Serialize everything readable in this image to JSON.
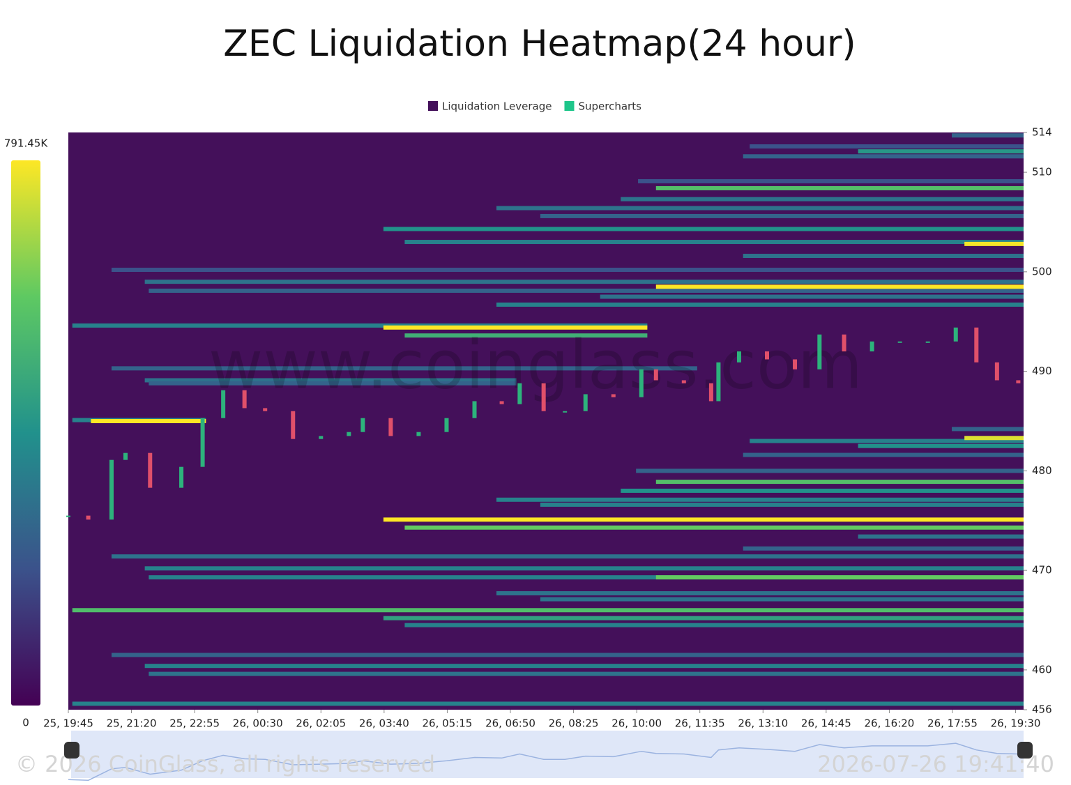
{
  "chart_data": {
    "type": "heatmap",
    "title": "ZEC Liquidation Heatmap(24 hour)",
    "series": [
      {
        "name": "Liquidation Leverage",
        "color": "#44105a"
      },
      {
        "name": "Supercharts",
        "color": "#1ec68a"
      }
    ],
    "ylim": [
      456,
      514
    ],
    "yticks": [
      456,
      460,
      470,
      480,
      490,
      500,
      510,
      514
    ],
    "xlim": [
      0,
      1437
    ],
    "xticks": [
      {
        "value": 0,
        "label": "25, 19:45"
      },
      {
        "value": 95,
        "label": "25, 21:20"
      },
      {
        "value": 190,
        "label": "25, 22:55"
      },
      {
        "value": 285,
        "label": "26, 00:30"
      },
      {
        "value": 380,
        "label": "26, 02:05"
      },
      {
        "value": 475,
        "label": "26, 03:40"
      },
      {
        "value": 570,
        "label": "26, 05:15"
      },
      {
        "value": 665,
        "label": "26, 06:50"
      },
      {
        "value": 760,
        "label": "26, 08:25"
      },
      {
        "value": 855,
        "label": "26, 10:00"
      },
      {
        "value": 950,
        "label": "26, 11:35"
      },
      {
        "value": 1045,
        "label": "26, 13:10"
      },
      {
        "value": 1140,
        "label": "26, 14:45"
      },
      {
        "value": 1235,
        "label": "26, 16:20"
      },
      {
        "value": 1330,
        "label": "26, 17:55"
      },
      {
        "value": 1425,
        "label": "26, 19:30"
      }
    ],
    "clim": [
      0,
      791450
    ],
    "cticks": [
      {
        "value": 791450,
        "label": "791.45K"
      },
      0
    ],
    "bands": [
      {
        "price": 513.7,
        "start": 1329,
        "end": 1437,
        "value": 250000
      },
      {
        "price": 512.6,
        "start": 1025,
        "end": 1437,
        "value": 200000
      },
      {
        "price": 512.1,
        "start": 1188,
        "end": 1437,
        "value": 420000
      },
      {
        "price": 511.6,
        "start": 1015,
        "end": 1437,
        "value": 250000
      },
      {
        "price": 509.1,
        "start": 857,
        "end": 1437,
        "value": 200000
      },
      {
        "price": 508.4,
        "start": 884,
        "end": 1437,
        "value": 560000
      },
      {
        "price": 507.3,
        "start": 831,
        "end": 1437,
        "value": 300000
      },
      {
        "price": 506.4,
        "start": 644,
        "end": 1437,
        "value": 300000
      },
      {
        "price": 505.6,
        "start": 710,
        "end": 1437,
        "value": 250000
      },
      {
        "price": 504.3,
        "start": 474,
        "end": 1437,
        "value": 400000
      },
      {
        "price": 503.0,
        "start": 506,
        "end": 1437,
        "value": 350000
      },
      {
        "price": 502.8,
        "start": 1348,
        "end": 1437,
        "value": 780000
      },
      {
        "price": 501.6,
        "start": 1015,
        "end": 1437,
        "value": 300000
      },
      {
        "price": 500.2,
        "start": 65,
        "end": 1437,
        "value": 200000
      },
      {
        "price": 499.0,
        "start": 115,
        "end": 1437,
        "value": 300000
      },
      {
        "price": 498.1,
        "start": 121,
        "end": 1437,
        "value": 250000
      },
      {
        "price": 498.5,
        "start": 884,
        "end": 1437,
        "value": 791450
      },
      {
        "price": 497.5,
        "start": 800,
        "end": 1437,
        "value": 300000
      },
      {
        "price": 496.7,
        "start": 644,
        "end": 1437,
        "value": 350000
      },
      {
        "price": 494.6,
        "start": 6,
        "end": 871,
        "value": 350000
      },
      {
        "price": 494.4,
        "start": 474,
        "end": 871,
        "value": 791450
      },
      {
        "price": 493.6,
        "start": 506,
        "end": 871,
        "value": 500000
      },
      {
        "price": 490.3,
        "start": 65,
        "end": 946,
        "value": 250000
      },
      {
        "price": 489.1,
        "start": 115,
        "end": 674,
        "value": 300000
      },
      {
        "price": 488.8,
        "start": 121,
        "end": 674,
        "value": 250000
      },
      {
        "price": 485.1,
        "start": 6,
        "end": 207,
        "value": 350000
      },
      {
        "price": 485.0,
        "start": 34,
        "end": 207,
        "value": 791450
      },
      {
        "price": 484.2,
        "start": 1329,
        "end": 1437,
        "value": 250000
      },
      {
        "price": 483.0,
        "start": 1025,
        "end": 1437,
        "value": 350000
      },
      {
        "price": 483.3,
        "start": 1348,
        "end": 1437,
        "value": 750000
      },
      {
        "price": 482.5,
        "start": 1188,
        "end": 1437,
        "value": 400000
      },
      {
        "price": 481.6,
        "start": 1015,
        "end": 1437,
        "value": 250000
      },
      {
        "price": 480.0,
        "start": 854,
        "end": 1437,
        "value": 250000
      },
      {
        "price": 478.9,
        "start": 884,
        "end": 1437,
        "value": 560000
      },
      {
        "price": 478.0,
        "start": 831,
        "end": 1437,
        "value": 400000
      },
      {
        "price": 477.1,
        "start": 644,
        "end": 1437,
        "value": 350000
      },
      {
        "price": 476.6,
        "start": 710,
        "end": 1437,
        "value": 350000
      },
      {
        "price": 475.1,
        "start": 474,
        "end": 1437,
        "value": 791450
      },
      {
        "price": 474.3,
        "start": 506,
        "end": 1437,
        "value": 600000
      },
      {
        "price": 473.4,
        "start": 1188,
        "end": 1437,
        "value": 300000
      },
      {
        "price": 472.2,
        "start": 1015,
        "end": 1437,
        "value": 250000
      },
      {
        "price": 471.4,
        "start": 65,
        "end": 1437,
        "value": 300000
      },
      {
        "price": 470.2,
        "start": 115,
        "end": 1437,
        "value": 350000
      },
      {
        "price": 469.3,
        "start": 121,
        "end": 1437,
        "value": 350000
      },
      {
        "price": 469.3,
        "start": 884,
        "end": 1437,
        "value": 600000
      },
      {
        "price": 467.7,
        "start": 644,
        "end": 1437,
        "value": 300000
      },
      {
        "price": 467.1,
        "start": 710,
        "end": 1437,
        "value": 300000
      },
      {
        "price": 466.0,
        "start": 6,
        "end": 1437,
        "value": 550000
      },
      {
        "price": 465.2,
        "start": 474,
        "end": 1437,
        "value": 450000
      },
      {
        "price": 464.5,
        "start": 506,
        "end": 1437,
        "value": 350000
      },
      {
        "price": 461.5,
        "start": 65,
        "end": 1437,
        "value": 250000
      },
      {
        "price": 460.4,
        "start": 115,
        "end": 1437,
        "value": 350000
      },
      {
        "price": 459.6,
        "start": 121,
        "end": 1437,
        "value": 300000
      },
      {
        "price": 456.6,
        "start": 6,
        "end": 1437,
        "value": 350000
      }
    ],
    "candles": {
      "x": [
        0,
        30,
        65,
        86,
        123,
        170,
        202,
        233,
        265,
        296,
        338,
        380,
        422,
        443,
        485,
        527,
        569,
        611,
        652,
        679,
        715,
        747,
        778,
        820,
        862,
        884,
        926,
        967,
        978,
        1009,
        1051,
        1093,
        1130,
        1167,
        1209,
        1251,
        1293,
        1335,
        1366,
        1397,
        1429
      ],
      "values": [
        475.5,
        475.1,
        481.1,
        481.8,
        478.3,
        480.4,
        485.3,
        488.1,
        486.3,
        486,
        483.2,
        483.5,
        483.9,
        485.3,
        483.5,
        483.9,
        485.3,
        487,
        486.7,
        488.8,
        486,
        486,
        487.7,
        487.4,
        490.2,
        489.1,
        488.8,
        487,
        490.9,
        492,
        491.2,
        490.2,
        493.7,
        492,
        493,
        493,
        493,
        494.4,
        490.9,
        489.1,
        488.8
      ]
    },
    "up_color": "#2db37c",
    "down_color": "#e0506a",
    "watermark": "www.coinglass.com",
    "copyright": "© 2026 CoinGlass, all rights reserved",
    "timestamp": "2026-07-26 19:41:40"
  }
}
